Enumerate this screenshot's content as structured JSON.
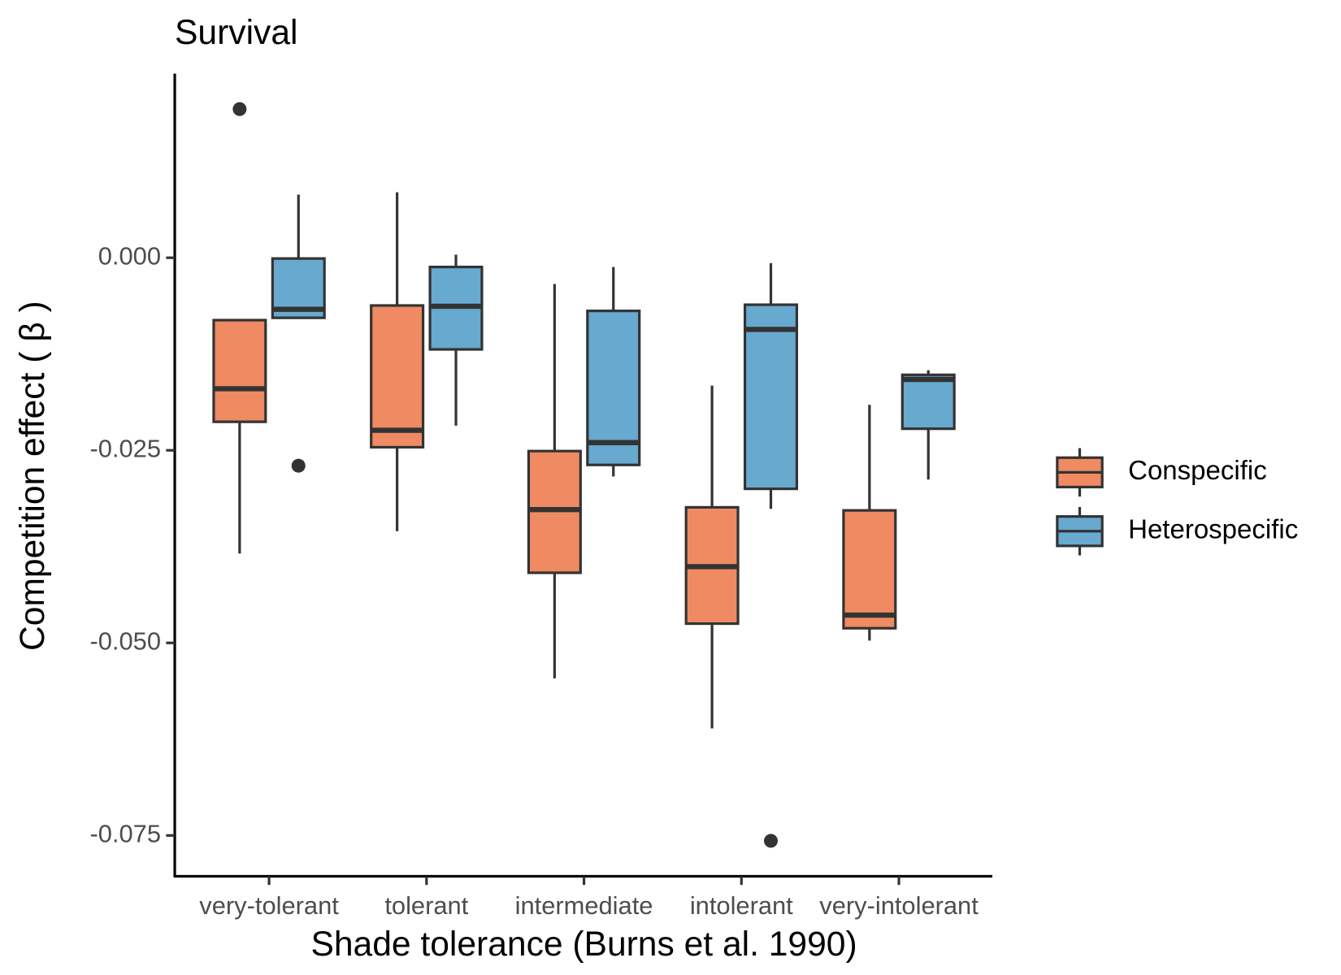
{
  "chart_data": {
    "type": "box",
    "title": "Survival",
    "x_label": "Shade tolerance (Burns et al. 1990)",
    "y_label": "Competition effect ( β )",
    "categories": [
      "very-tolerant",
      "tolerant",
      "intermediate",
      "intolerant",
      "very-intolerant"
    ],
    "ylim": [
      -0.0803,
      0.0239
    ],
    "yticks": [
      {
        "value": 0,
        "label": "0.000"
      },
      {
        "value": -0.025,
        "label": "-0.025"
      },
      {
        "value": -0.05,
        "label": "-0.050"
      },
      {
        "value": -0.075,
        "label": "-0.075"
      }
    ],
    "legend_position": "right",
    "series": [
      {
        "name": "Conspecific",
        "color": "#ef8a62",
        "whisker_high": [
          -0.0081,
          0.0085,
          -0.0034,
          -0.0166,
          -0.0191
        ],
        "q3": [
          -0.0081,
          -0.0062,
          -0.0251,
          -0.0324,
          -0.0328
        ],
        "median": [
          -0.017,
          -0.0224,
          -0.0327,
          -0.0401,
          -0.0464
        ],
        "q1": [
          -0.0213,
          -0.0246,
          -0.0409,
          -0.0475,
          -0.0481
        ],
        "whisker_low": [
          -0.0384,
          -0.0355,
          -0.0546,
          -0.0611,
          -0.0497
        ],
        "outliers": [
          [
            0.0193
          ],
          [],
          [],
          [],
          []
        ]
      },
      {
        "name": "Heterospecific",
        "color": "#67a9cf",
        "whisker_high": [
          0.0082,
          0.0004,
          -0.0012,
          -0.0007,
          -0.0146
        ],
        "q3": [
          -0.0001,
          -0.0012,
          -0.0069,
          -0.0061,
          -0.0152
        ],
        "median": [
          -0.0067,
          -0.0063,
          -0.024,
          -0.0093,
          -0.0158
        ],
        "q1": [
          -0.0078,
          -0.0119,
          -0.0269,
          -0.03,
          -0.0222
        ],
        "whisker_low": [
          -0.0078,
          -0.0218,
          -0.0284,
          -0.0326,
          -0.0288
        ],
        "outliers": [
          [
            -0.027
          ],
          [],
          [],
          [
            -0.0757
          ],
          []
        ]
      }
    ]
  }
}
